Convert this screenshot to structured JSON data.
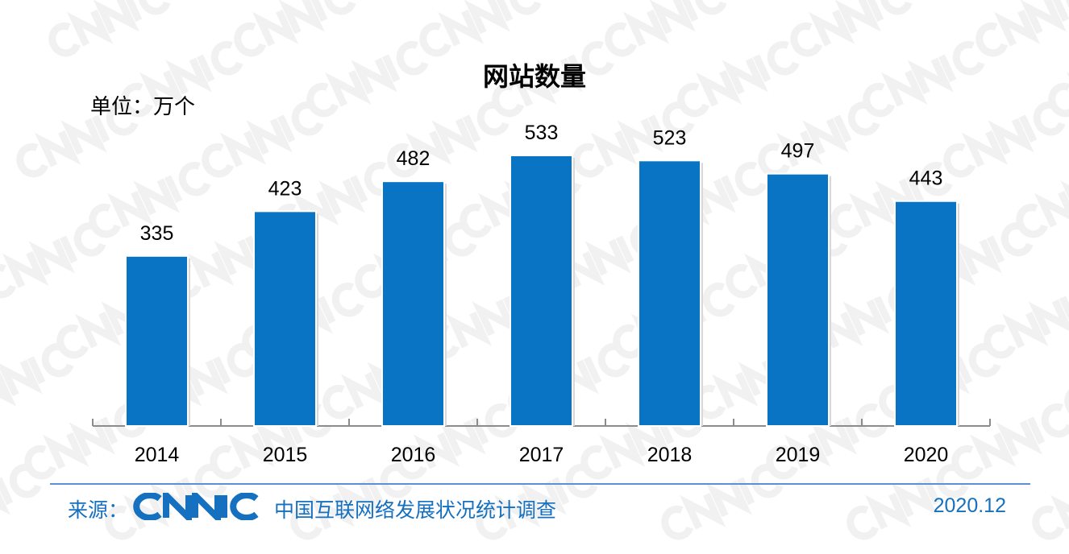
{
  "chart_data": {
    "type": "bar",
    "title": "网站数量",
    "ylabel": "单位：万个",
    "xlabel": "",
    "categories": [
      "2014",
      "2015",
      "2016",
      "2017",
      "2018",
      "2019",
      "2020"
    ],
    "values": [
      335,
      423,
      482,
      533,
      523,
      497,
      443
    ],
    "ylim": [
      0,
      533
    ],
    "grid": false,
    "bar_color": "#0a74c4"
  },
  "footer": {
    "source_label": "来源：",
    "logo_text": "CNNIC",
    "survey_name": "中国互联网络发展状况统计调查",
    "date": "2020.12"
  },
  "watermark": "CNNIC"
}
